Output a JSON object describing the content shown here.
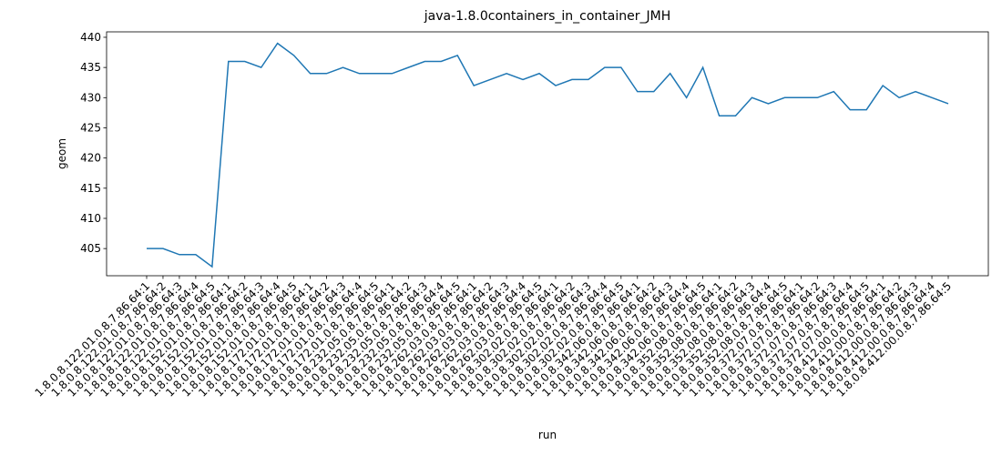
{
  "chart_data": {
    "type": "line",
    "title": "java-1.8.0containers_in_container_JMH",
    "x_label": "run",
    "y_label": "geom",
    "categories": [
      "1.8.0.8.122.01.0.8.7.86.64:1",
      "1.8.0.8.122.01.0.8.7.86.64:2",
      "1.8.0.8.122.01.0.8.7.86.64:3",
      "1.8.0.8.122.01.0.8.7.86.64:4",
      "1.8.0.8.122.01.0.8.7.86.64:5",
      "1.8.0.8.152.01.0.8.7.86.64:1",
      "1.8.0.8.152.01.0.8.7.86.64:2",
      "1.8.0.8.152.01.0.8.7.86.64:3",
      "1.8.0.8.152.01.0.8.7.86.64:4",
      "1.8.0.8.152.01.0.8.7.86.64:5",
      "1.8.0.8.172.01.0.8.7.86.64:1",
      "1.8.0.8.172.01.0.8.7.86.64:2",
      "1.8.0.8.172.01.0.8.7.86.64:3",
      "1.8.0.8.172.01.0.8.7.86.64:4",
      "1.8.0.8.172.01.0.8.7.86.64:5",
      "1.8.0.8.232.05.0.8.7.86.64:1",
      "1.8.0.8.232.05.0.8.7.86.64:2",
      "1.8.0.8.232.05.0.8.7.86.64:3",
      "1.8.0.8.232.05.0.8.7.86.64:4",
      "1.8.0.8.232.05.0.8.7.86.64:5",
      "1.8.0.8.262.03.0.8.7.86.64:1",
      "1.8.0.8.262.03.0.8.7.86.64:2",
      "1.8.0.8.262.03.0.8.7.86.64:3",
      "1.8.0.8.262.03.0.8.7.86.64:4",
      "1.8.0.8.262.03.0.8.7.86.64:5",
      "1.8.0.8.302.02.0.8.7.86.64:1",
      "1.8.0.8.302.02.0.8.7.86.64:2",
      "1.8.0.8.302.02.0.8.7.86.64:3",
      "1.8.0.8.302.02.0.8.7.86.64:4",
      "1.8.0.8.302.02.0.8.7.86.64:5",
      "1.8.0.8.342.06.0.8.7.86.64:1",
      "1.8.0.8.342.06.0.8.7.86.64:2",
      "1.8.0.8.342.06.0.8.7.86.64:3",
      "1.8.0.8.342.06.0.8.7.86.64:4",
      "1.8.0.8.342.06.0.8.7.86.64:5",
      "1.8.0.8.352.08.0.8.7.86.64:1",
      "1.8.0.8.352.08.0.8.7.86.64:2",
      "1.8.0.8.352.08.0.8.7.86.64:3",
      "1.8.0.8.352.08.0.8.7.86.64:4",
      "1.8.0.8.352.08.0.8.7.86.64:5",
      "1.8.0.8.372.07.0.8.7.86.64:1",
      "1.8.0.8.372.07.0.8.7.86.64:2",
      "1.8.0.8.372.07.0.8.7.86.64:3",
      "1.8.0.8.372.07.0.8.7.86.64:4",
      "1.8.0.8.372.07.0.8.7.86.64:5",
      "1.8.0.8.412.00.0.8.7.86.64:1",
      "1.8.0.8.412.00.0.8.7.86.64:2",
      "1.8.0.8.412.00.0.8.7.86.64:3",
      "1.8.0.8.412.00.0.8.7.86.64:4",
      "1.8.0.8.412.00.0.8.7.86.64:5"
    ],
    "values": [
      405,
      405,
      404,
      404,
      402,
      436,
      436,
      435,
      439,
      437,
      434,
      434,
      435,
      434,
      434,
      434,
      435,
      436,
      436,
      437,
      432,
      433,
      434,
      433,
      434,
      432,
      433,
      433,
      435,
      435,
      431,
      431,
      434,
      430,
      435,
      427,
      427,
      430,
      429,
      430,
      430,
      430,
      431,
      428,
      428,
      432,
      430,
      431,
      430,
      429
    ],
    "color": "#1f77b4",
    "ylim": [
      400.5,
      440.9
    ],
    "yticks": [
      405,
      410,
      415,
      420,
      425,
      430,
      435,
      440
    ]
  }
}
